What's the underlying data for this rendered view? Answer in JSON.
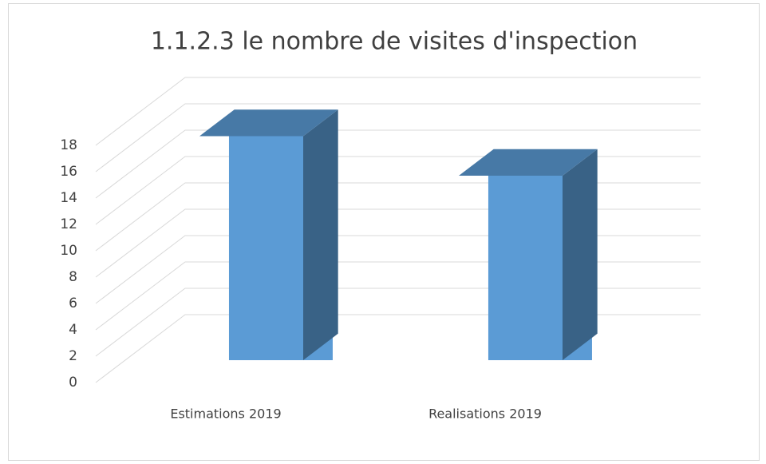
{
  "chart_data": {
    "type": "bar3d",
    "title": "1.1.2.3 le nombre de visites d'inspection",
    "categories": [
      "Estimations 2019",
      "Realisations 2019"
    ],
    "values": [
      17,
      14
    ],
    "color": "#5b9bd5",
    "ylim": [
      0,
      18
    ],
    "yticks": [
      0,
      2,
      4,
      6,
      8,
      10,
      12,
      14,
      16,
      18
    ],
    "grid": true
  }
}
